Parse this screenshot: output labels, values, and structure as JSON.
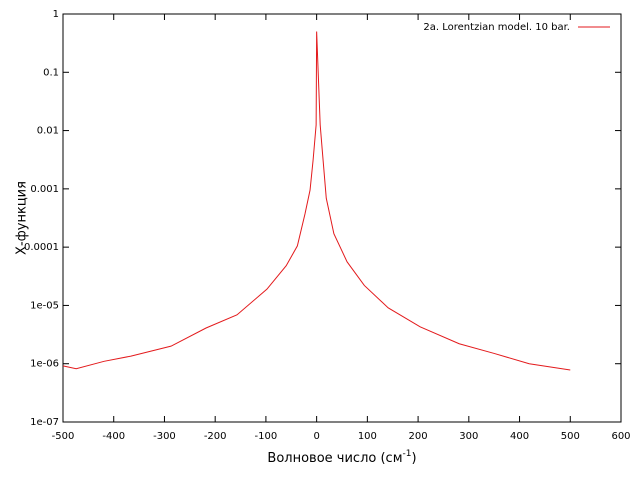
{
  "chart_data": {
    "type": "line",
    "xlabel": {
      "text": "Волновое число (см",
      "sup": "-1",
      "close": ")"
    },
    "ylabel": "Χ-функция",
    "xlim": [
      -500,
      600
    ],
    "ylim": [
      1e-07,
      1
    ],
    "log_y": true,
    "xticks": [
      -500,
      -400,
      -300,
      -200,
      -100,
      0,
      100,
      200,
      300,
      400,
      500,
      600
    ],
    "yticks": [
      1,
      0.1,
      0.01,
      0.001,
      0.0001,
      {
        "value": 1e-05,
        "label": "1e-05"
      },
      {
        "value": 1e-06,
        "label": "1e-06"
      },
      {
        "value": 1e-07,
        "label": "1e-07"
      }
    ],
    "legend_position": "top right",
    "series": [
      {
        "name": "2a. Lorentzian model. 10 bar.",
        "color": "#e31a1c",
        "x": [
          -500,
          -474,
          -419,
          -366,
          -287,
          -218,
          -157,
          -98,
          -60,
          -38,
          -23,
          -13,
          -7,
          -1,
          0,
          7,
          11,
          19,
          34,
          60,
          94,
          141,
          204,
          281,
          350,
          419,
          500
        ],
        "values": [
          9.2e-07,
          8.2e-07,
          1.1e-06,
          1.35e-06,
          2e-06,
          4.1e-06,
          6.9e-06,
          1.9e-05,
          4.8e-05,
          0.000105,
          0.00037,
          0.00095,
          0.0031,
          0.0125,
          0.5,
          0.0125,
          0.0047,
          0.00069,
          0.00017,
          5.6e-05,
          2.2e-05,
          9.1e-06,
          4.3e-06,
          2.2e-06,
          1.5e-06,
          1e-06,
          7.8e-07
        ]
      }
    ]
  }
}
